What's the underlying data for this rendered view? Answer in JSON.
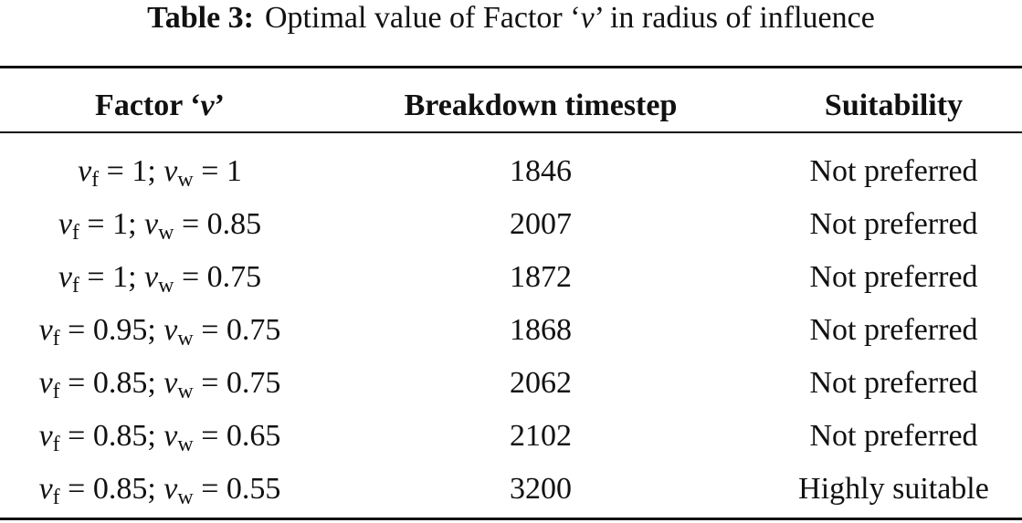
{
  "title": {
    "label": "Table 3:",
    "text": [
      "Optimal value of Factor ‘",
      "v",
      "’ in radius of influence"
    ]
  },
  "table": {
    "header": [
      [
        "Factor ‘",
        "v",
        "’"
      ],
      "Breakdown timestep",
      "Suitability"
    ],
    "rows": [
      [
        [
          "v",
          "f",
          " = 1; ",
          "v",
          "w",
          " = 1"
        ],
        "1846",
        "Not preferred"
      ],
      [
        [
          "v",
          "f",
          " = 1; ",
          "v",
          "w",
          " = 0.85"
        ],
        "2007",
        "Not preferred"
      ],
      [
        [
          "v",
          "f",
          " = 1; ",
          "v",
          "w",
          " = 0.75"
        ],
        "1872",
        "Not preferred"
      ],
      [
        [
          "v",
          "f",
          " = 0.95; ",
          "v",
          "w",
          " = 0.75"
        ],
        "1868",
        "Not preferred"
      ],
      [
        [
          "v",
          "f",
          " = 0.85; ",
          "v",
          "w",
          " = 0.75"
        ],
        "2062",
        "Not preferred"
      ],
      [
        [
          "v",
          "f",
          " = 0.85; ",
          "v",
          "w",
          " = 0.65"
        ],
        "2102",
        "Not preferred"
      ],
      [
        [
          "v",
          "f",
          " = 0.85; ",
          "v",
          "w",
          " = 0.55"
        ],
        "3200",
        "Highly suitable"
      ]
    ]
  }
}
